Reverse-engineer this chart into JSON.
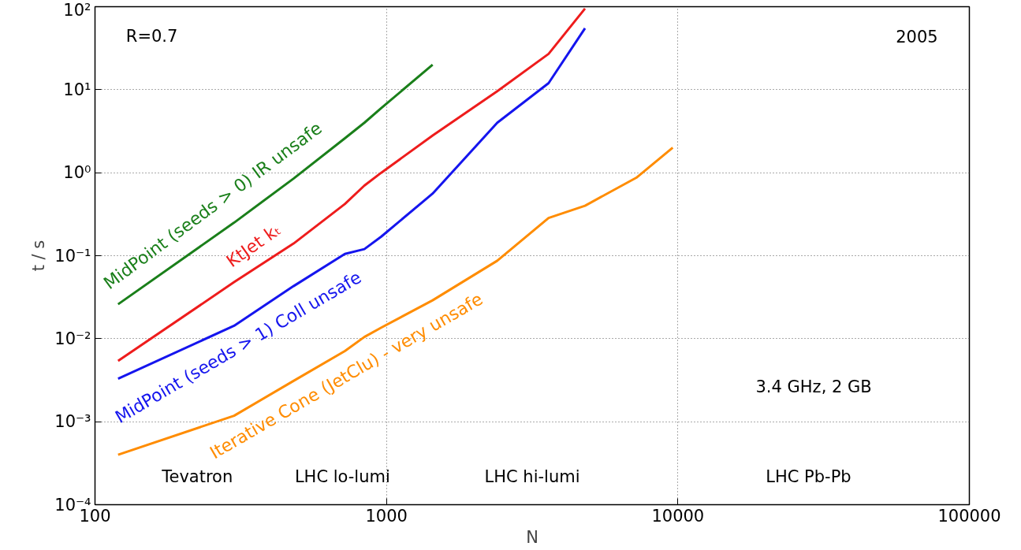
{
  "chart_data": {
    "type": "line",
    "xlabel": "N",
    "ylabel": "t / s",
    "log": "xy",
    "grid": true,
    "xlim": [
      100,
      100000
    ],
    "ylim": [
      0.0001,
      100
    ],
    "xticks": [
      100,
      1000,
      10000,
      100000
    ],
    "yticks": [
      {
        "value": 0.0001,
        "label": "10⁻⁴"
      },
      {
        "value": 0.001,
        "label": "10⁻³"
      },
      {
        "value": 0.01,
        "label": "10⁻²"
      },
      {
        "value": 0.1,
        "label": "10⁻¹"
      },
      {
        "value": 1,
        "label": "10⁰"
      },
      {
        "value": 10,
        "label": "10¹"
      },
      {
        "value": 100,
        "label": "10²"
      }
    ],
    "x": [
      120,
      300,
      480,
      720,
      840,
      960,
      1440,
      2400,
      3600,
      4800,
      7200,
      9600
    ],
    "series": [
      {
        "name": "MidPoint (seeds > 0) IR unsafe",
        "color": "#1a7f1a",
        "values": [
          0.026,
          0.25,
          0.85,
          2.6,
          4,
          6,
          20,
          null,
          null,
          null,
          null,
          null
        ]
      },
      {
        "name": "KtJet kₜ",
        "color": "#ee1c1c",
        "values": [
          0.0054,
          0.048,
          0.14,
          0.42,
          0.7,
          1.0,
          2.8,
          9.6,
          27,
          95,
          null,
          null
        ]
      },
      {
        "name": "MidPoint (seeds > 1) Coll unsafe",
        "color": "#1515ee",
        "values": [
          0.0033,
          0.0143,
          0.043,
          0.105,
          0.12,
          0.17,
          0.56,
          4,
          12,
          55,
          null,
          null
        ]
      },
      {
        "name": "Iterative Cone (JetClu) - very unsafe",
        "color": "#ff8c00",
        "values": [
          0.0004,
          0.00118,
          0.0031,
          0.0071,
          0.0105,
          0.0136,
          0.029,
          0.087,
          0.285,
          0.4,
          0.87,
          2.0
        ]
      }
    ],
    "annotations": [
      "R=0.7",
      "2005",
      "3.4 GHz, 2 GB",
      "Tevatron",
      "LHC lo-lumi",
      "LHC hi-lumi",
      "LHC Pb-Pb"
    ]
  }
}
